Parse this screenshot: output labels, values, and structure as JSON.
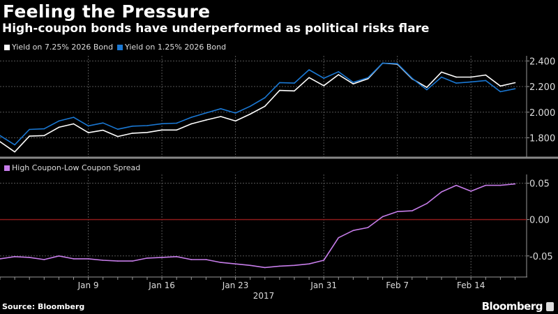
{
  "title": "Feeling the Pressure",
  "subtitle": "High-coupon bonds have underperformed as political risks flare",
  "source": "Source: Bloomberg",
  "brand": "Bloomberg",
  "chart_data": [
    {
      "type": "line",
      "legend_placement": "top-left",
      "grid": true,
      "ylim": [
        1.65,
        2.44
      ],
      "yticks": [
        "2.400",
        "2.200",
        "2.000",
        "1.800"
      ],
      "ytick_values": [
        2.4,
        2.2,
        2.0,
        1.8
      ],
      "x": [
        "2016-12-30",
        "2017-01-02",
        "2017-01-03",
        "2017-01-04",
        "2017-01-05",
        "2017-01-06",
        "2017-01-09",
        "2017-01-10",
        "2017-01-11",
        "2017-01-12",
        "2017-01-13",
        "2017-01-16",
        "2017-01-17",
        "2017-01-18",
        "2017-01-19",
        "2017-01-20",
        "2017-01-23",
        "2017-01-24",
        "2017-01-25",
        "2017-01-26",
        "2017-01-27",
        "2017-01-30",
        "2017-01-31",
        "2017-02-01",
        "2017-02-02",
        "2017-02-03",
        "2017-02-06",
        "2017-02-07",
        "2017-02-08",
        "2017-02-09",
        "2017-02-10",
        "2017-02-13",
        "2017-02-14",
        "2017-02-15",
        "2017-02-16",
        "2017-02-17"
      ],
      "series": [
        {
          "name": "Yield on 7.25% 2026 Bond",
          "color": "#ffffff",
          "values": [
            1.77,
            1.69,
            1.813,
            1.817,
            1.882,
            1.909,
            1.84,
            1.859,
            1.81,
            1.836,
            1.842,
            1.861,
            1.861,
            1.909,
            1.939,
            1.966,
            1.931,
            1.985,
            2.046,
            2.17,
            2.166,
            2.27,
            2.207,
            2.293,
            2.221,
            2.261,
            2.383,
            2.375,
            2.261,
            2.194,
            2.313,
            2.274,
            2.274,
            2.29,
            2.204,
            2.23
          ]
        },
        {
          "name": "Yield on 1.25% 2026 Bond",
          "color": "#1a78d4",
          "values": [
            1.817,
            1.745,
            1.865,
            1.87,
            1.931,
            1.96,
            1.893,
            1.916,
            1.867,
            1.891,
            1.895,
            1.91,
            1.914,
            1.96,
            1.994,
            2.027,
            1.993,
            2.046,
            2.113,
            2.231,
            2.227,
            2.331,
            2.265,
            2.316,
            2.233,
            2.269,
            2.383,
            2.379,
            2.265,
            2.175,
            2.274,
            2.227,
            2.236,
            2.247,
            2.16,
            2.183
          ]
        }
      ]
    },
    {
      "type": "line",
      "legend_placement": "top-left",
      "grid": true,
      "ylim": [
        -0.079,
        0.062
      ],
      "yticks": [
        "0.05",
        "0.00",
        "-0.05"
      ],
      "ytick_values": [
        0.05,
        0.0,
        -0.05
      ],
      "reference_line": {
        "value": 0.0,
        "color": "#8b1a1a"
      },
      "xtick_labels": [
        "Jan 9",
        "Jan 16",
        "Jan 23",
        "Jan 31",
        "Feb 7",
        "Feb 14"
      ],
      "xtick_dates": [
        "2017-01-09",
        "2017-01-16",
        "2017-01-23",
        "2017-01-31",
        "2017-02-07",
        "2017-02-14"
      ],
      "xlabel": "2017",
      "series": [
        {
          "name": "High Coupon-Low Coupon Spread",
          "color": "#c77dea",
          "values": [
            -0.054,
            -0.051,
            -0.052,
            -0.055,
            -0.05,
            -0.054,
            -0.054,
            -0.056,
            -0.057,
            -0.057,
            -0.053,
            -0.052,
            -0.051,
            -0.055,
            -0.055,
            -0.059,
            -0.061,
            -0.063,
            -0.066,
            -0.064,
            -0.063,
            -0.061,
            -0.056,
            -0.025,
            -0.015,
            -0.011,
            0.004,
            0.011,
            0.012,
            0.022,
            0.038,
            0.047,
            0.039,
            0.047,
            0.047,
            0.049
          ]
        }
      ]
    }
  ]
}
